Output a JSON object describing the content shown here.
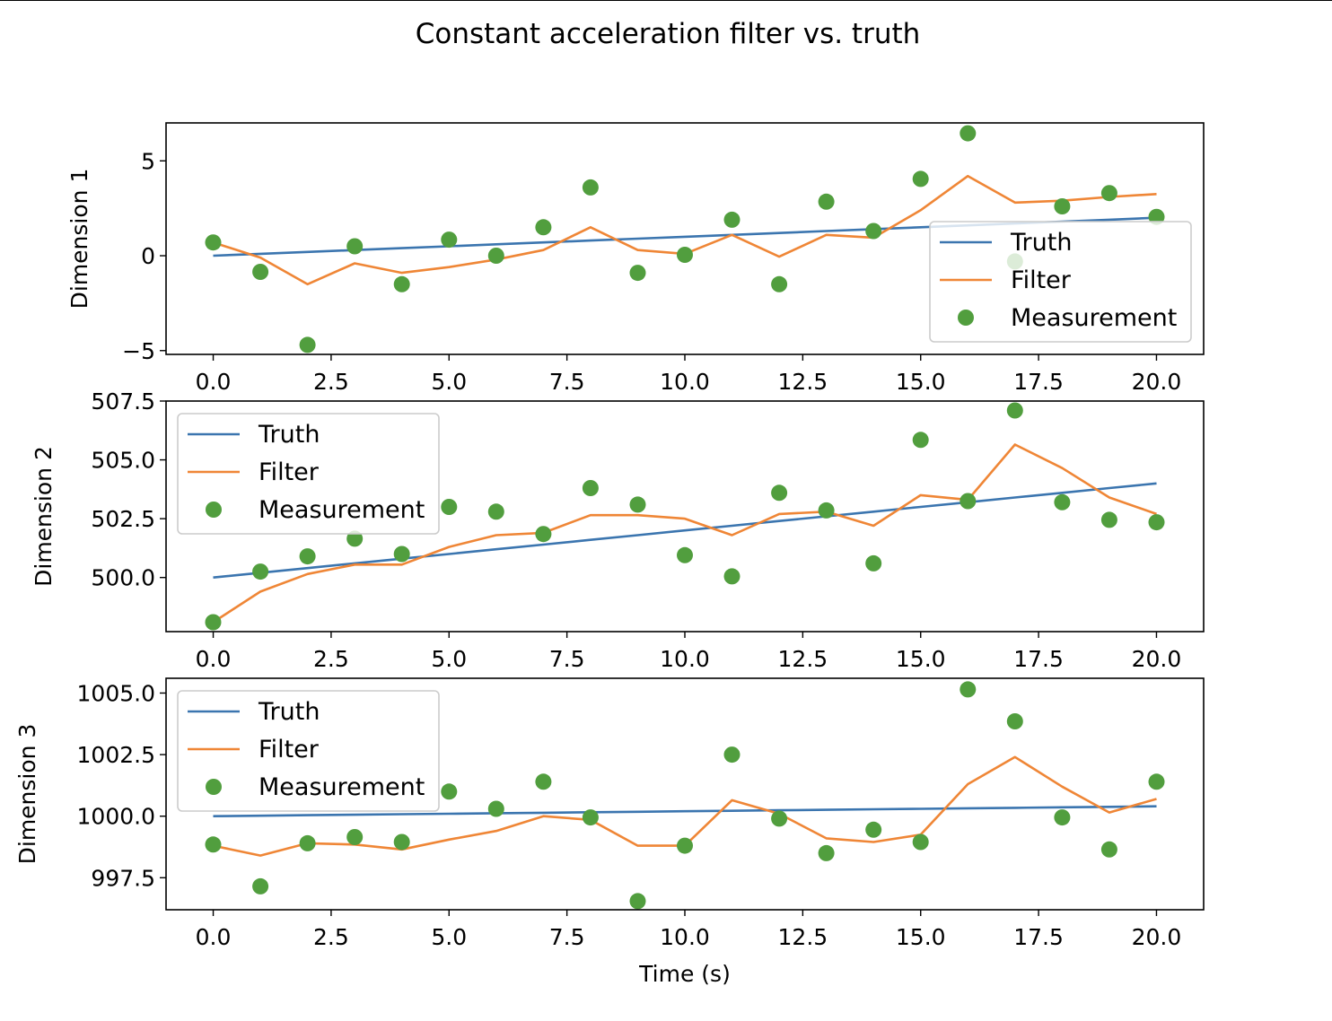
{
  "title": "Constant acceleration filter vs. truth",
  "chart_data": [
    {
      "type": "line",
      "ylabel": "Dimension 1",
      "xlabel": "",
      "x": [
        0,
        1,
        2,
        3,
        4,
        5,
        6,
        7,
        8,
        9,
        10,
        11,
        12,
        13,
        14,
        15,
        16,
        17,
        18,
        19,
        20
      ],
      "xlim": [
        -1,
        21
      ],
      "ylim": [
        -5.2,
        7
      ],
      "xticks": [
        0.0,
        2.5,
        5.0,
        7.5,
        10.0,
        12.5,
        15.0,
        17.5,
        20.0
      ],
      "xtick_labels": [
        "0.0",
        "2.5",
        "5.0",
        "7.5",
        "10.0",
        "12.5",
        "15.0",
        "17.5",
        "20.0"
      ],
      "yticks": [
        -5,
        0,
        5
      ],
      "ytick_labels": [
        "−5",
        "0",
        "5"
      ],
      "legend": "lower-right",
      "series": [
        {
          "name": "Truth",
          "kind": "line",
          "color": "#3b75af",
          "values": [
            0.0,
            0.1,
            0.2,
            0.3,
            0.4,
            0.5,
            0.6,
            0.7,
            0.8,
            0.9,
            1.0,
            1.1,
            1.2,
            1.3,
            1.4,
            1.5,
            1.6,
            1.7,
            1.8,
            1.9,
            2.0
          ]
        },
        {
          "name": "Filter",
          "kind": "line",
          "color": "#ef8636",
          "values": [
            0.7,
            -0.1,
            -1.5,
            -0.4,
            -0.9,
            -0.6,
            -0.2,
            0.3,
            1.5,
            0.3,
            0.1,
            1.1,
            -0.05,
            1.1,
            0.95,
            2.4,
            4.2,
            2.8,
            2.9,
            3.1,
            3.25
          ]
        },
        {
          "name": "Measurement",
          "kind": "scatter",
          "color": "#519e3e",
          "values": [
            0.7,
            -0.85,
            -4.7,
            0.5,
            -1.5,
            0.85,
            0.0,
            1.5,
            3.6,
            -0.9,
            0.05,
            1.9,
            -1.5,
            2.85,
            1.3,
            4.05,
            6.45,
            -0.3,
            2.6,
            3.3,
            2.05
          ]
        }
      ]
    },
    {
      "type": "line",
      "ylabel": "Dimension 2",
      "xlabel": "",
      "x": [
        0,
        1,
        2,
        3,
        4,
        5,
        6,
        7,
        8,
        9,
        10,
        11,
        12,
        13,
        14,
        15,
        16,
        17,
        18,
        19,
        20
      ],
      "xlim": [
        -1,
        21
      ],
      "ylim": [
        497.7,
        507.5
      ],
      "xticks": [
        0.0,
        2.5,
        5.0,
        7.5,
        10.0,
        12.5,
        15.0,
        17.5,
        20.0
      ],
      "xtick_labels": [
        "0.0",
        "2.5",
        "5.0",
        "7.5",
        "10.0",
        "12.5",
        "15.0",
        "17.5",
        "20.0"
      ],
      "yticks": [
        500.0,
        502.5,
        505.0,
        507.5
      ],
      "ytick_labels": [
        "500.0",
        "502.5",
        "505.0",
        "507.5"
      ],
      "legend": "upper-left",
      "series": [
        {
          "name": "Truth",
          "kind": "line",
          "color": "#3b75af",
          "values": [
            500.0,
            500.2,
            500.4,
            500.6,
            500.8,
            501.0,
            501.2,
            501.4,
            501.6,
            501.8,
            502.0,
            502.2,
            502.4,
            502.6,
            502.8,
            503.0,
            503.2,
            503.4,
            503.6,
            503.8,
            504.0
          ]
        },
        {
          "name": "Filter",
          "kind": "line",
          "color": "#ef8636",
          "values": [
            498.1,
            499.4,
            500.15,
            500.55,
            500.55,
            501.3,
            501.8,
            501.9,
            502.65,
            502.65,
            502.5,
            501.8,
            502.7,
            502.8,
            502.2,
            503.5,
            503.3,
            505.65,
            504.65,
            503.4,
            502.7
          ]
        },
        {
          "name": "Measurement",
          "kind": "scatter",
          "color": "#519e3e",
          "values": [
            498.1,
            500.25,
            500.9,
            501.65,
            501.0,
            503.0,
            502.8,
            501.85,
            503.8,
            503.1,
            500.95,
            500.05,
            503.6,
            502.85,
            500.6,
            505.85,
            503.25,
            507.1,
            503.2,
            502.45,
            502.35
          ]
        }
      ]
    },
    {
      "type": "line",
      "ylabel": "Dimension 3",
      "xlabel": "Time (s)",
      "x": [
        0,
        1,
        2,
        3,
        4,
        5,
        6,
        7,
        8,
        9,
        10,
        11,
        12,
        13,
        14,
        15,
        16,
        17,
        18,
        19,
        20
      ],
      "xlim": [
        -1,
        21
      ],
      "ylim": [
        996.2,
        1005.6
      ],
      "xticks": [
        0.0,
        2.5,
        5.0,
        7.5,
        10.0,
        12.5,
        15.0,
        17.5,
        20.0
      ],
      "xtick_labels": [
        "0.0",
        "2.5",
        "5.0",
        "7.5",
        "10.0",
        "12.5",
        "15.0",
        "17.5",
        "20.0"
      ],
      "yticks": [
        997.5,
        1000.0,
        1002.5,
        1005.0
      ],
      "ytick_labels": [
        "997.5",
        "1000.0",
        "1002.5",
        "1005.0"
      ],
      "legend": "upper-left",
      "series": [
        {
          "name": "Truth",
          "kind": "line",
          "color": "#3b75af",
          "values": [
            1000.0,
            1000.02,
            1000.04,
            1000.06,
            1000.08,
            1000.1,
            1000.12,
            1000.14,
            1000.16,
            1000.18,
            1000.2,
            1000.22,
            1000.24,
            1000.26,
            1000.28,
            1000.3,
            1000.32,
            1000.34,
            1000.36,
            1000.38,
            1000.4
          ]
        },
        {
          "name": "Filter",
          "kind": "line",
          "color": "#ef8636",
          "values": [
            998.8,
            998.4,
            998.9,
            998.85,
            998.65,
            999.05,
            999.4,
            1000.0,
            999.85,
            998.8,
            998.8,
            1000.65,
            1000.1,
            999.1,
            998.95,
            999.25,
            1001.3,
            1002.4,
            1001.2,
            1000.15,
            1000.7
          ]
        },
        {
          "name": "Measurement",
          "kind": "scatter",
          "color": "#519e3e",
          "values": [
            998.85,
            997.15,
            998.9,
            999.15,
            998.95,
            1001.0,
            1000.3,
            1001.4,
            999.95,
            996.55,
            998.8,
            1002.5,
            999.9,
            998.5,
            999.45,
            998.95,
            1005.15,
            1003.85,
            999.95,
            998.65,
            1001.4
          ]
        }
      ]
    }
  ]
}
